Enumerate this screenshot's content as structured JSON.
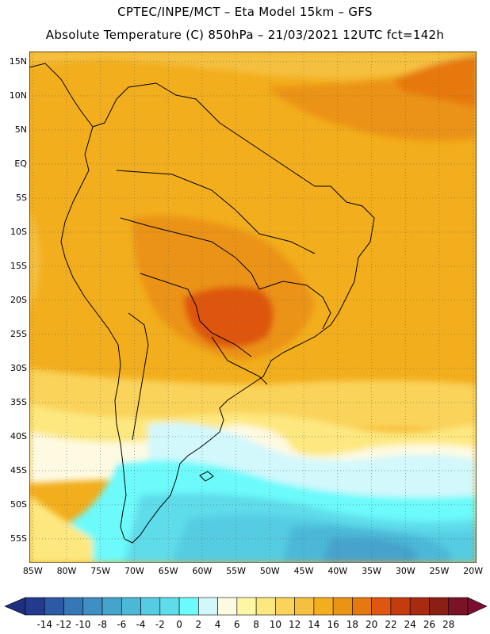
{
  "header": {
    "line1": "CPTEC/INPE/MCT –  Eta Model 15km – GFS",
    "line2": "Absolute Temperature (C) 850hPa – 21/03/2021 12UTC fct=142h"
  },
  "lat_labels": [
    "15N",
    "10N",
    "5N",
    "EQ",
    "5S",
    "10S",
    "15S",
    "20S",
    "25S",
    "30S",
    "35S",
    "40S",
    "45S",
    "50S",
    "55S"
  ],
  "lat_values": [
    15,
    10,
    5,
    0,
    -5,
    -10,
    -15,
    -20,
    -25,
    -30,
    -35,
    -40,
    -45,
    -50,
    -55
  ],
  "lon_labels": [
    "85W",
    "80W",
    "75W",
    "70W",
    "65W",
    "60W",
    "55W",
    "50W",
    "45W",
    "40W",
    "35W",
    "30W",
    "25W",
    "20W"
  ],
  "lon_values": [
    -85,
    -80,
    -75,
    -70,
    -65,
    -60,
    -55,
    -50,
    -45,
    -40,
    -35,
    -30,
    -25,
    -20
  ],
  "extent": {
    "lon_min": -85.5,
    "lon_max": -19.5,
    "lat_min": -58.5,
    "lat_max": 16.5
  },
  "colorbar": {
    "labels": [
      "-14",
      "-12",
      "-10",
      "-8",
      "-6",
      "-4",
      "-2",
      "0",
      "2",
      "4",
      "6",
      "8",
      "10",
      "12",
      "14",
      "16",
      "18",
      "20",
      "22",
      "24",
      "26",
      "28"
    ],
    "colors": [
      "#233a8f",
      "#2c5aa5",
      "#3677b5",
      "#3f8ec4",
      "#46a3cc",
      "#4cb8d8",
      "#55cce2",
      "#5fdcea",
      "#6cfafb",
      "#d2f8fc",
      "#fefae2",
      "#fdf7a5",
      "#fde880",
      "#fad35a",
      "#f5c040",
      "#f2ae1c",
      "#eb9313",
      "#e67810",
      "#de5610",
      "#c43b0d",
      "#a82a0f",
      "#8b1f14",
      "#7a1326"
    ],
    "under_color": "#1f2f7f",
    "over_color": "#7a0f2e"
  },
  "map": {
    "colors": {
      "t28": "#de5610",
      "t24": "#e67810",
      "t22": "#eb9313",
      "t20": "#f2ae1c",
      "t18": "#f5c040",
      "t16": "#fad35a",
      "t14": "#fde880",
      "t12": "#fdf7a5",
      "t10": "#fefae2",
      "t8": "#d2f8fc",
      "t6": "#6cfafb",
      "t4": "#5fdcea",
      "t2": "#55cce2",
      "t0": "#4cb8d8",
      "tm2": "#46a3cc",
      "tm4": "#3f8ec4"
    }
  }
}
